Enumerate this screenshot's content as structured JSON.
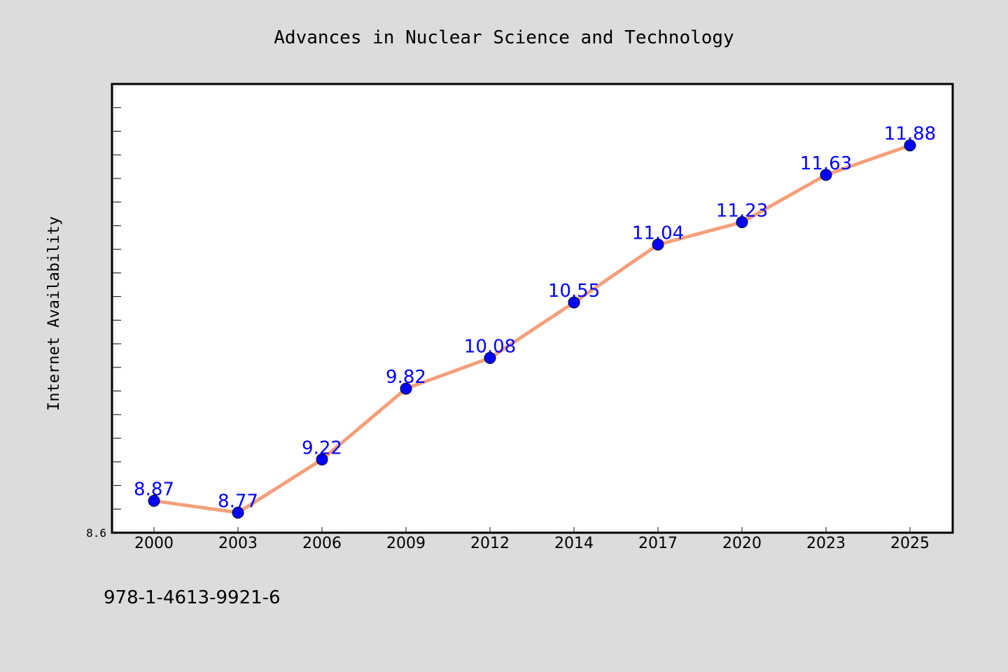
{
  "chart_data": {
    "type": "line",
    "title": "Advances in Nuclear Science and Technology",
    "ylabel": "Internet Availability",
    "xlabel": "",
    "categories": [
      "2000",
      "2003",
      "2006",
      "2009",
      "2012",
      "2014",
      "2017",
      "2020",
      "2023",
      "2025"
    ],
    "series": [
      {
        "values": [
          8.87,
          8.77,
          9.22,
          9.82,
          10.08,
          10.55,
          11.04,
          11.23,
          11.63,
          11.88
        ]
      }
    ],
    "value_labels": [
      "8.87",
      "8.77",
      "9.22",
      "9.82",
      "10.08",
      "10.55",
      "11.04",
      "11.23",
      "11.63",
      "11.88"
    ],
    "ylim": [
      8.6,
      12.4
    ],
    "y_tick_labels": [
      "8.6"
    ],
    "grid": false,
    "colors": {
      "line": "#f4a07c",
      "marker": "#0000ff",
      "data_label": "#0000ff",
      "plot_bg": "#ffffff",
      "page_bg": "#dcdcdc"
    }
  },
  "footer_text": "978-1-4613-9921-6"
}
